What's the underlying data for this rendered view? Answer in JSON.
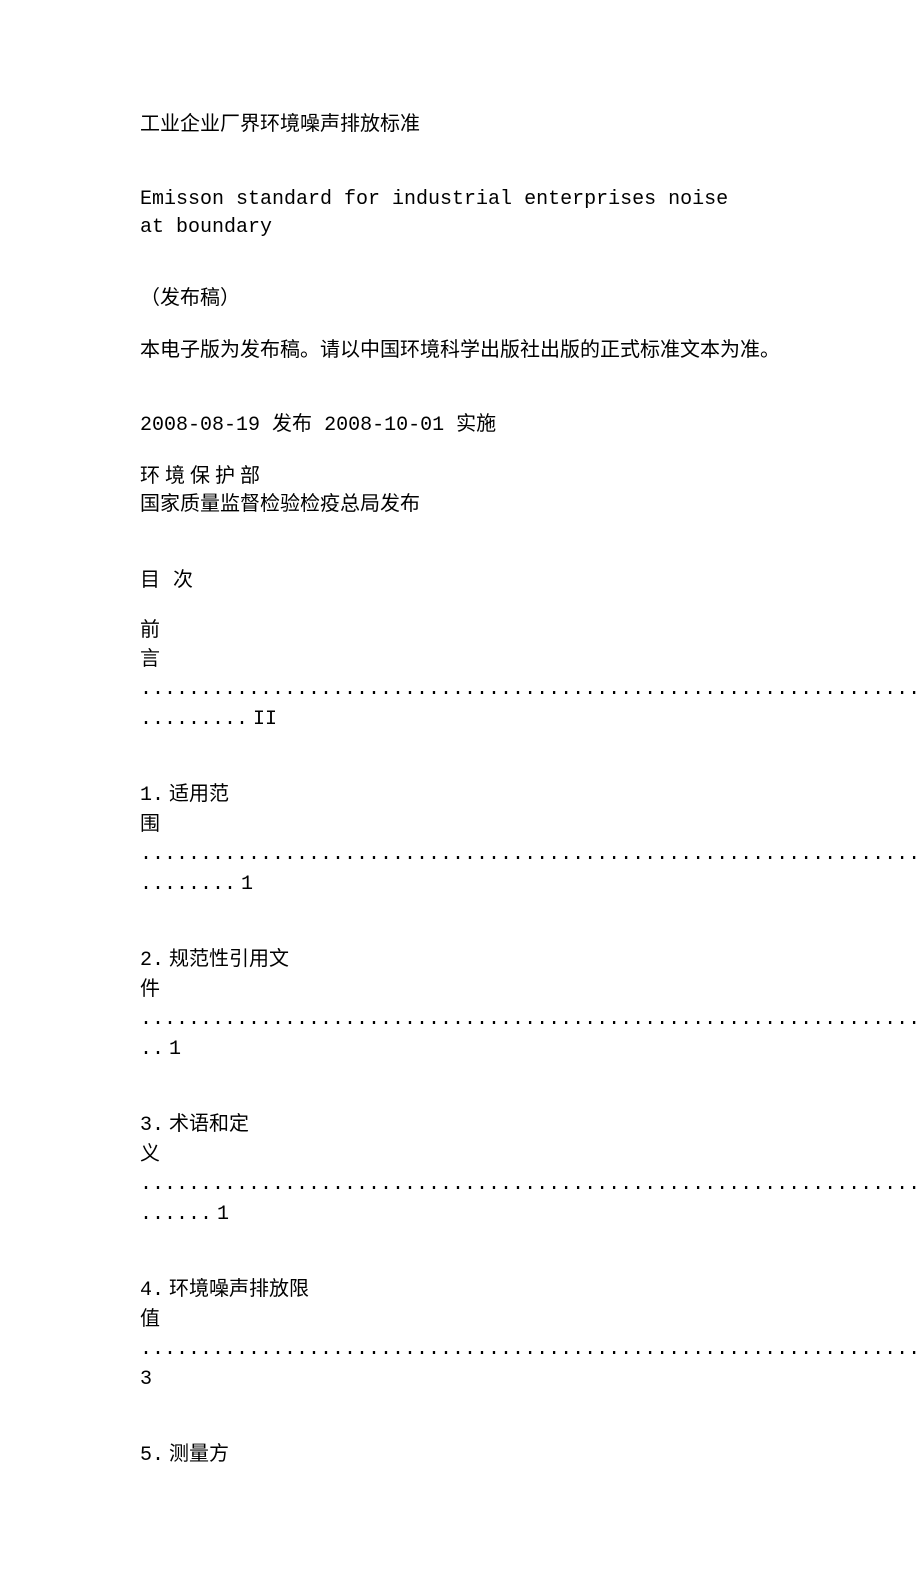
{
  "title_zh": "工业企业厂界环境噪声排放标准",
  "english_title_line1": "Emisson standard for industrial enterprises noise",
  "english_title_line2": "at boundary",
  "draft_note": "（发布稿）",
  "electronic_note": "本电子版为发布稿。请以中国环境科学出版社出版的正式标准文本为准。",
  "date_issued_label": "发布",
  "date_issued": "2008-08-19",
  "date_effective_label": "实施",
  "date_effective": "2008-10-01",
  "publisher_1": "环 境 保 护 部",
  "publisher_2": "国家质量监督检验检疫总局发布",
  "toc_header": "目 次",
  "toc": {
    "preface_label": "前",
    "preface_label2": "言",
    "preface_page": "II",
    "item1_prefix": "1.",
    "item1_label_part1": "适用范",
    "item1_label_part2": "围",
    "item1_page": "1",
    "item2_prefix": "2.",
    "item2_label_part1": "规范性引用文",
    "item2_label_part2": "件",
    "item2_page": "1",
    "item3_prefix": "3.",
    "item3_label_part1": "术语和定",
    "item3_label_part2": "义",
    "item3_page": "1",
    "item4_prefix": "4.",
    "item4_label_part1": "环境噪声排放限",
    "item4_label_part2": "值",
    "item4_page": "3",
    "item5_prefix": "5.",
    "item5_label_part1": "测量方"
  },
  "dots": {
    "preface_line2": "...................................................................",
    "preface_line3": ".........",
    "item1_line2": "...................................................................",
    "item1_line3": "........",
    "item2_line2": "...................................................................",
    "item2_line3": "..",
    "item3_line2": "...................................................................",
    "item3_line3": "......",
    "item4_line2": "..................................................................."
  },
  "colors": {
    "background": "#ffffff",
    "text": "#000000"
  },
  "typography": {
    "body_fontsize": 20,
    "body_font": "SimSun",
    "mono_font": "Courier New",
    "line_height": 1.4
  }
}
